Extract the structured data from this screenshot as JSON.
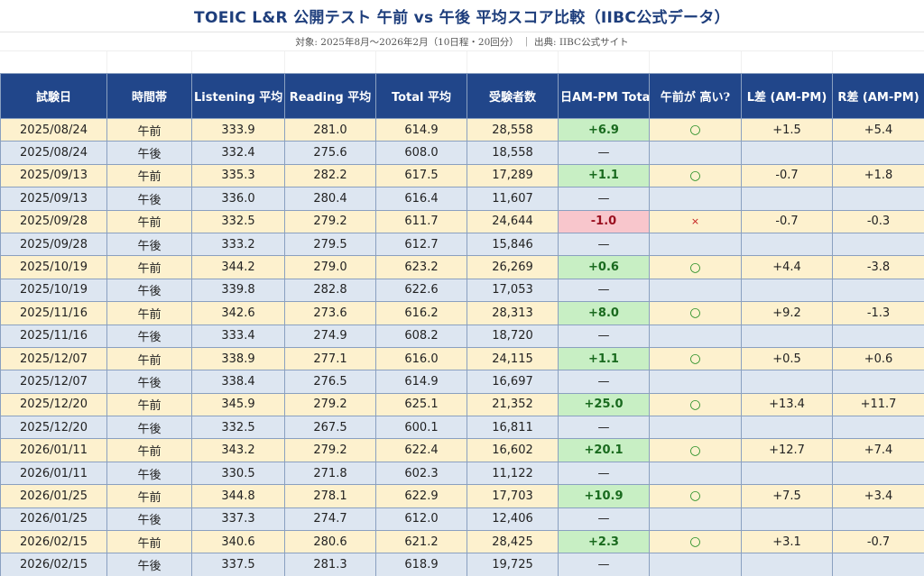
{
  "title": "TOEIC L&R 公開テスト 午前 vs 午後 平均スコア比較（IIBC公式データ）",
  "subtitle": "対象: 2025年8月〜2026年2月（10日程・20回分） ｜ 出典: IIBC公式サイト",
  "colors": {
    "header_bg": "#21468a",
    "title_text": "#1e3e7c",
    "am_row": "#fdf1ce",
    "pm_row": "#dde6f1",
    "positive_fill": "#c8efc4",
    "positive_text": "#196a1e",
    "negative_fill": "#f8c6cc",
    "negative_text": "#9a1020",
    "circle_mark": "#1d8a1d",
    "cross_mark": "#c21a1a"
  },
  "chart_data": {
    "type": "table",
    "columns": [
      "試験日",
      "時間帯",
      "Listening 平均",
      "Reading 平均",
      "Total 平均",
      "受験者数",
      "日AM-PM Tota",
      "午前が 高い?",
      "L差 (AM-PM)",
      "R差 (AM-PM)"
    ],
    "rows": [
      {
        "date": "2025/08/24",
        "period": "午前",
        "listening": "333.9",
        "reading": "281.0",
        "total": "614.9",
        "examinees": "28,558",
        "diff_total": "+6.9",
        "am_higher": "○",
        "l_diff": "+1.5",
        "r_diff": "+5.4"
      },
      {
        "date": "2025/08/24",
        "period": "午後",
        "listening": "332.4",
        "reading": "275.6",
        "total": "608.0",
        "examinees": "18,558",
        "diff_total": "—",
        "am_higher": "",
        "l_diff": "",
        "r_diff": ""
      },
      {
        "date": "2025/09/13",
        "period": "午前",
        "listening": "335.3",
        "reading": "282.2",
        "total": "617.5",
        "examinees": "17,289",
        "diff_total": "+1.1",
        "am_higher": "○",
        "l_diff": "-0.7",
        "r_diff": "+1.8"
      },
      {
        "date": "2025/09/13",
        "period": "午後",
        "listening": "336.0",
        "reading": "280.4",
        "total": "616.4",
        "examinees": "11,607",
        "diff_total": "—",
        "am_higher": "",
        "l_diff": "",
        "r_diff": ""
      },
      {
        "date": "2025/09/28",
        "period": "午前",
        "listening": "332.5",
        "reading": "279.2",
        "total": "611.7",
        "examinees": "24,644",
        "diff_total": "-1.0",
        "am_higher": "×",
        "l_diff": "-0.7",
        "r_diff": "-0.3"
      },
      {
        "date": "2025/09/28",
        "period": "午後",
        "listening": "333.2",
        "reading": "279.5",
        "total": "612.7",
        "examinees": "15,846",
        "diff_total": "—",
        "am_higher": "",
        "l_diff": "",
        "r_diff": ""
      },
      {
        "date": "2025/10/19",
        "period": "午前",
        "listening": "344.2",
        "reading": "279.0",
        "total": "623.2",
        "examinees": "26,269",
        "diff_total": "+0.6",
        "am_higher": "○",
        "l_diff": "+4.4",
        "r_diff": "-3.8"
      },
      {
        "date": "2025/10/19",
        "period": "午後",
        "listening": "339.8",
        "reading": "282.8",
        "total": "622.6",
        "examinees": "17,053",
        "diff_total": "—",
        "am_higher": "",
        "l_diff": "",
        "r_diff": ""
      },
      {
        "date": "2025/11/16",
        "period": "午前",
        "listening": "342.6",
        "reading": "273.6",
        "total": "616.2",
        "examinees": "28,313",
        "diff_total": "+8.0",
        "am_higher": "○",
        "l_diff": "+9.2",
        "r_diff": "-1.3"
      },
      {
        "date": "2025/11/16",
        "period": "午後",
        "listening": "333.4",
        "reading": "274.9",
        "total": "608.2",
        "examinees": "18,720",
        "diff_total": "—",
        "am_higher": "",
        "l_diff": "",
        "r_diff": ""
      },
      {
        "date": "2025/12/07",
        "period": "午前",
        "listening": "338.9",
        "reading": "277.1",
        "total": "616.0",
        "examinees": "24,115",
        "diff_total": "+1.1",
        "am_higher": "○",
        "l_diff": "+0.5",
        "r_diff": "+0.6"
      },
      {
        "date": "2025/12/07",
        "period": "午後",
        "listening": "338.4",
        "reading": "276.5",
        "total": "614.9",
        "examinees": "16,697",
        "diff_total": "—",
        "am_higher": "",
        "l_diff": "",
        "r_diff": ""
      },
      {
        "date": "2025/12/20",
        "period": "午前",
        "listening": "345.9",
        "reading": "279.2",
        "total": "625.1",
        "examinees": "21,352",
        "diff_total": "+25.0",
        "am_higher": "○",
        "l_diff": "+13.4",
        "r_diff": "+11.7"
      },
      {
        "date": "2025/12/20",
        "period": "午後",
        "listening": "332.5",
        "reading": "267.5",
        "total": "600.1",
        "examinees": "16,811",
        "diff_total": "—",
        "am_higher": "",
        "l_diff": "",
        "r_diff": ""
      },
      {
        "date": "2026/01/11",
        "period": "午前",
        "listening": "343.2",
        "reading": "279.2",
        "total": "622.4",
        "examinees": "16,602",
        "diff_total": "+20.1",
        "am_higher": "○",
        "l_diff": "+12.7",
        "r_diff": "+7.4"
      },
      {
        "date": "2026/01/11",
        "period": "午後",
        "listening": "330.5",
        "reading": "271.8",
        "total": "602.3",
        "examinees": "11,122",
        "diff_total": "—",
        "am_higher": "",
        "l_diff": "",
        "r_diff": ""
      },
      {
        "date": "2026/01/25",
        "period": "午前",
        "listening": "344.8",
        "reading": "278.1",
        "total": "622.9",
        "examinees": "17,703",
        "diff_total": "+10.9",
        "am_higher": "○",
        "l_diff": "+7.5",
        "r_diff": "+3.4"
      },
      {
        "date": "2026/01/25",
        "period": "午後",
        "listening": "337.3",
        "reading": "274.7",
        "total": "612.0",
        "examinees": "12,406",
        "diff_total": "—",
        "am_higher": "",
        "l_diff": "",
        "r_diff": ""
      },
      {
        "date": "2026/02/15",
        "period": "午前",
        "listening": "340.6",
        "reading": "280.6",
        "total": "621.2",
        "examinees": "28,425",
        "diff_total": "+2.3",
        "am_higher": "○",
        "l_diff": "+3.1",
        "r_diff": "-0.7"
      },
      {
        "date": "2026/02/15",
        "period": "午後",
        "listening": "337.5",
        "reading": "281.3",
        "total": "618.9",
        "examinees": "19,725",
        "diff_total": "—",
        "am_higher": "",
        "l_diff": "",
        "r_diff": ""
      }
    ]
  }
}
